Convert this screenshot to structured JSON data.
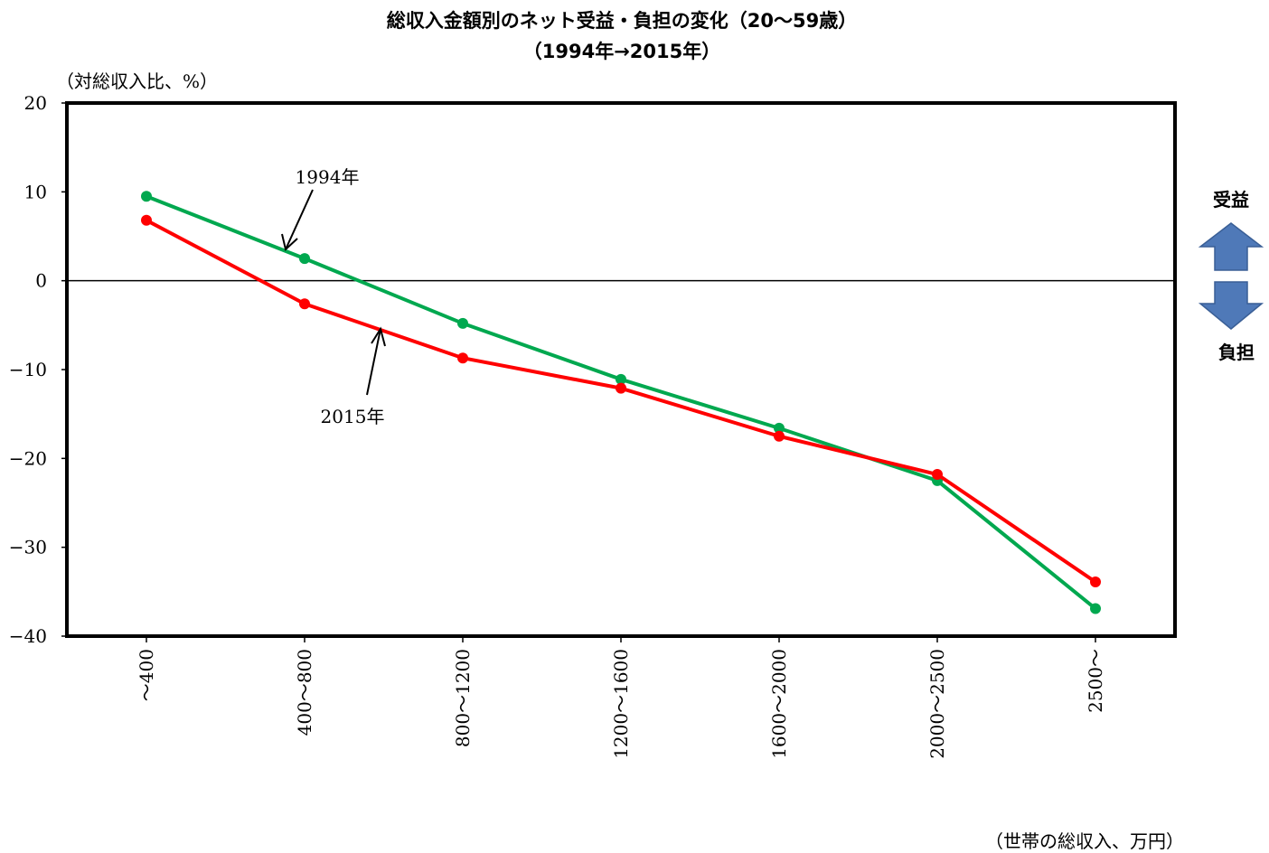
{
  "chart_data": {
    "type": "line",
    "title": "総収入金額別のネット受益・負担の変化（20〜59歳）",
    "subtitle": "（1994年→2015年）",
    "ylabel": "（対総収入比、%）",
    "xlabel": "（世帯の総収入、万円）",
    "ylim": [
      -40,
      20
    ],
    "yticks": [
      20,
      10,
      0,
      -10,
      -20,
      -30,
      -40
    ],
    "ytick_labels": [
      "20",
      "10",
      "0",
      "−10",
      "−20",
      "−30",
      "−40"
    ],
    "categories": [
      "〜400",
      "400〜800",
      "800〜1200",
      "1200〜1600",
      "1600〜2000",
      "2000〜2500",
      "2500〜"
    ],
    "series": [
      {
        "name": "1994年",
        "color": "#00a84f",
        "values": [
          9.5,
          2.5,
          -4.8,
          -11.1,
          -16.6,
          -22.5,
          -36.9
        ]
      },
      {
        "name": "2015年",
        "color": "#ff0000",
        "values": [
          6.8,
          -2.6,
          -8.7,
          -12.1,
          -17.5,
          -21.8,
          -33.9
        ]
      }
    ],
    "grid": false,
    "legend": "annotations"
  },
  "side_labels": {
    "up_label": "受益",
    "down_label": "負担",
    "arrow_color": "#4f79b8"
  }
}
